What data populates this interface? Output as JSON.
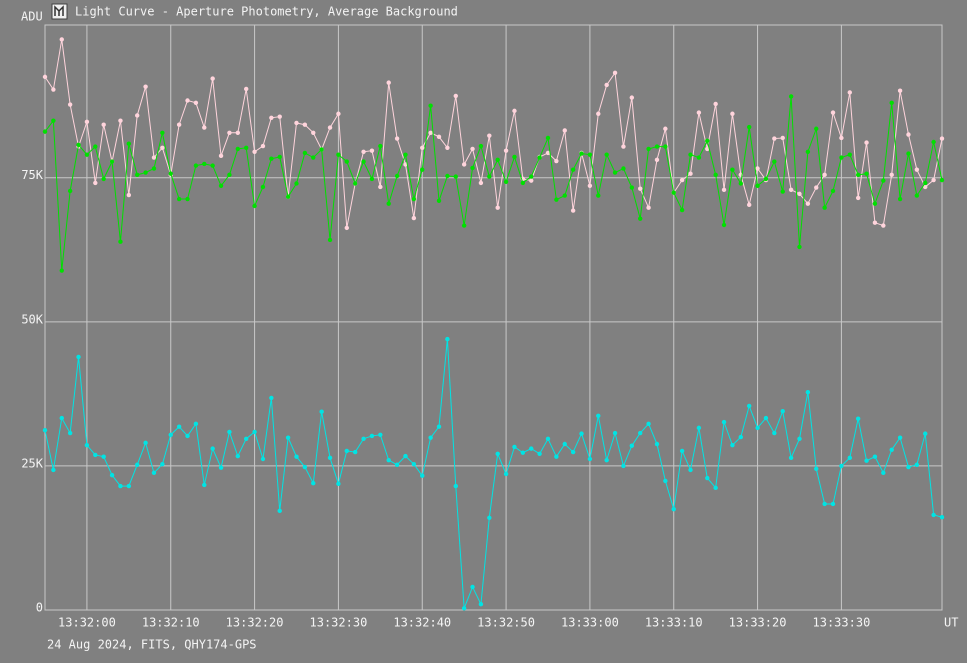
{
  "chart_data": {
    "type": "line",
    "title": "Light Curve - Aperture Photometry, Average Background",
    "footer": "24 Aug 2024, FITS, QHY174-GPS",
    "y_label": "ADU",
    "x_label": "UT",
    "x": [
      "13:31:55",
      "13:31:56",
      "13:31:57",
      "13:31:58",
      "13:31:59",
      "13:32:00",
      "13:32:01",
      "13:32:02",
      "13:32:03",
      "13:32:04",
      "13:32:05",
      "13:32:06",
      "13:32:07",
      "13:32:08",
      "13:32:09",
      "13:32:10",
      "13:32:11",
      "13:32:12",
      "13:32:13",
      "13:32:14",
      "13:32:15",
      "13:32:16",
      "13:32:17",
      "13:32:18",
      "13:32:19",
      "13:32:20",
      "13:32:21",
      "13:32:22",
      "13:32:23",
      "13:32:24",
      "13:32:25",
      "13:32:26",
      "13:32:27",
      "13:32:28",
      "13:32:29",
      "13:32:30",
      "13:32:31",
      "13:32:32",
      "13:32:33",
      "13:32:34",
      "13:32:35",
      "13:32:36",
      "13:32:37",
      "13:32:38",
      "13:32:39",
      "13:32:40",
      "13:32:41",
      "13:32:42",
      "13:32:43",
      "13:32:44",
      "13:32:45",
      "13:32:46",
      "13:32:47",
      "13:32:48",
      "13:32:49",
      "13:32:50",
      "13:32:51",
      "13:32:52",
      "13:32:53",
      "13:32:54",
      "13:32:55",
      "13:32:56",
      "13:32:57",
      "13:32:58",
      "13:32:59",
      "13:33:00",
      "13:33:01",
      "13:33:02",
      "13:33:03",
      "13:33:04",
      "13:33:05",
      "13:33:06",
      "13:33:07",
      "13:33:08",
      "13:33:09",
      "13:33:10",
      "13:33:11",
      "13:33:12",
      "13:33:13",
      "13:33:14",
      "13:33:15",
      "13:33:16",
      "13:33:17",
      "13:33:18",
      "13:33:19",
      "13:33:20",
      "13:33:21",
      "13:33:22",
      "13:33:23",
      "13:33:24",
      "13:33:25",
      "13:33:26",
      "13:33:27",
      "13:33:28",
      "13:33:29",
      "13:33:30",
      "13:33:31",
      "13:33:32",
      "13:33:33",
      "13:33:34",
      "13:33:35",
      "13:33:36",
      "13:33:37",
      "13:33:38",
      "13:33:39",
      "13:33:40",
      "13:33:41",
      "13:33:42"
    ],
    "xlim": [
      "13:31:55",
      "13:33:42"
    ],
    "xticks": [
      "13:32:00",
      "13:32:10",
      "13:32:20",
      "13:32:30",
      "13:32:40",
      "13:32:50",
      "13:33:00",
      "13:33:10",
      "13:33:20",
      "13:33:30"
    ],
    "ylim": [
      0,
      101500
    ],
    "yticks": [
      0,
      {
        "value": 25000,
        "label": "25K"
      },
      {
        "value": 50000,
        "label": "50K"
      },
      {
        "value": 75000,
        "label": "75K"
      }
    ],
    "grid": true,
    "series": [
      {
        "color": "#ffd4dc",
        "values": [
          92500,
          90300,
          99000,
          87700,
          80400,
          84700,
          74100,
          84200,
          77800,
          84900,
          72000,
          85800,
          90800,
          78500,
          80200,
          75500,
          84200,
          88400,
          88000,
          83700,
          92200,
          78800,
          82800,
          82800,
          90400,
          79500,
          80500,
          85400,
          85600,
          71700,
          84500,
          84200,
          82800,
          79900,
          83700,
          86100,
          66300,
          74000,
          79500,
          79700,
          73400,
          91500,
          81800,
          77300,
          68000,
          80200,
          82800,
          82100,
          80200,
          89200,
          77300,
          80000,
          74100,
          82300,
          69800,
          79700,
          86600,
          74800,
          74500,
          78600,
          79300,
          77900,
          83200,
          69300,
          79300,
          73600,
          86100,
          91100,
          93200,
          80400,
          88900,
          73100,
          69800,
          78100,
          83500,
          72400,
          74600,
          75700,
          86300,
          80000,
          87800,
          72900,
          86100,
          75500,
          70300,
          76600,
          74600,
          81800,
          81900,
          72900,
          72200,
          70500,
          73300,
          75500,
          86300,
          81900,
          89800,
          71500,
          81100,
          67200,
          66700,
          75500,
          90100,
          82500,
          76400,
          73400,
          74600,
          81800
        ]
      },
      {
        "color": "#00e000",
        "values": [
          83000,
          84900,
          58900,
          72700,
          80700,
          79000,
          80400,
          74800,
          77800,
          63900,
          80900,
          75500,
          75900,
          76600,
          82800,
          75700,
          71300,
          71300,
          77100,
          77400,
          77100,
          73600,
          75500,
          80000,
          80200,
          70100,
          73400,
          78300,
          78600,
          71700,
          74000,
          79300,
          78500,
          79900,
          64200,
          79000,
          77800,
          74000,
          77800,
          74800,
          80500,
          70500,
          75300,
          79000,
          71300,
          76400,
          87500,
          71000,
          75300,
          75200,
          66700,
          76700,
          80500,
          75200,
          78100,
          74300,
          78600,
          74100,
          75200,
          78500,
          81900,
          71200,
          71900,
          76400,
          79200,
          79000,
          71900,
          79000,
          75900,
          76600,
          73300,
          67900,
          80000,
          80400,
          80400,
          72400,
          69400,
          79000,
          78500,
          81400,
          75500,
          66800,
          76400,
          74000,
          83800,
          73600,
          74800,
          77800,
          72600,
          89100,
          63000,
          79500,
          83500,
          69800,
          72700,
          78500,
          79000,
          75500,
          75700,
          70500,
          74500,
          88000,
          71300,
          79200,
          71900,
          74100,
          81200,
          74600
        ]
      },
      {
        "color": "#00e4e4",
        "values": [
          31200,
          24300,
          33300,
          30700,
          43900,
          28600,
          26900,
          26600,
          23400,
          21500,
          21500,
          25200,
          29000,
          23800,
          25300,
          30400,
          31800,
          30200,
          32300,
          21700,
          28000,
          24700,
          30900,
          26700,
          29700,
          30900,
          26200,
          36800,
          17200,
          29900,
          26600,
          24800,
          22000,
          34400,
          26400,
          21900,
          27600,
          27400,
          29700,
          30200,
          30400,
          26000,
          25200,
          26700,
          25300,
          23300,
          29900,
          31800,
          47000,
          21500,
          300,
          4000,
          1000,
          16000,
          27100,
          23600,
          28300,
          27300,
          28000,
          27100,
          29700,
          26600,
          28800,
          27400,
          30600,
          26200,
          33700,
          26000,
          30700,
          25000,
          28500,
          30700,
          32300,
          28800,
          22400,
          17500,
          27600,
          24300,
          31600,
          22900,
          21200,
          32600,
          28600,
          30000,
          35400,
          31600,
          33300,
          30700,
          34500,
          26400,
          29700,
          37800,
          24500,
          18400,
          18400,
          25000,
          26400,
          33200,
          25900,
          26600,
          23800,
          27800,
          29900,
          24800,
          25200,
          30600,
          16500,
          16100
        ]
      }
    ]
  }
}
